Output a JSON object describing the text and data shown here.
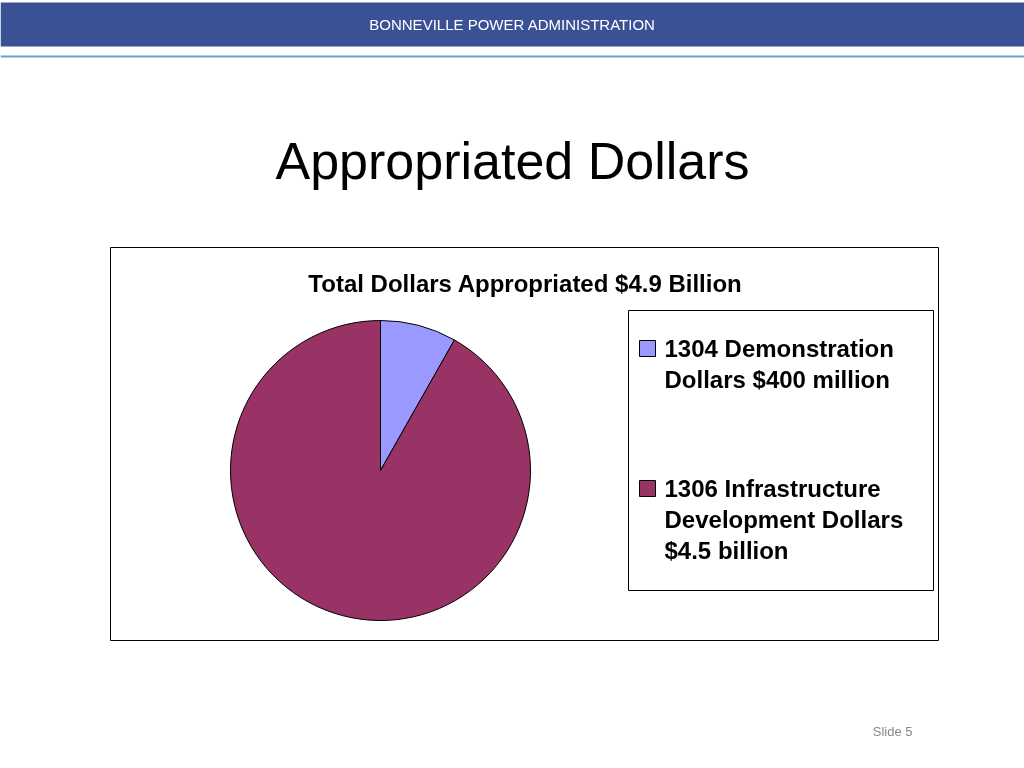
{
  "chart_data": {
    "type": "pie",
    "title": "Appropriated Dollars",
    "subtitle": "Total Dollars Appropriated $4.9 Billion",
    "categories": [
      "1304 Demonstration Dollars $400 million",
      "1306 Infrastructure Development Dollars $4.5 billion"
    ],
    "values": [
      8.2,
      91.8
    ],
    "colors": [
      "#9999ff",
      "#993366"
    ],
    "legend": "right",
    "annotations": [
      "BONNEVILLE POWER ADMINISTRATION",
      "Slide 5"
    ]
  }
}
